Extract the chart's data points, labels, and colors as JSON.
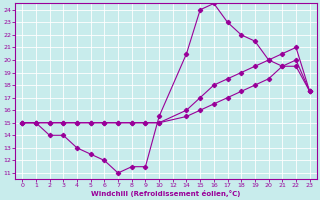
{
  "xlabel": "Windchill (Refroidissement éolien,°C)",
  "bg_color": "#c8ecec",
  "line_color": "#990099",
  "grid_color": "#ffffff",
  "xtick_labels": [
    "0",
    "1",
    "2",
    "3",
    "4",
    "5",
    "6",
    "7",
    "8",
    "9",
    "10",
    "12",
    "14",
    "15",
    "16",
    "17",
    "18",
    "19",
    "20",
    "21",
    "22",
    "23"
  ],
  "xtick_vals": [
    0,
    1,
    2,
    3,
    4,
    5,
    6,
    7,
    8,
    9,
    10,
    11,
    12,
    13,
    14,
    15,
    16,
    17,
    18,
    19,
    20,
    21
  ],
  "ylim": [
    10.5,
    24.5
  ],
  "yticks": [
    11,
    12,
    13,
    14,
    15,
    16,
    17,
    18,
    19,
    20,
    21,
    22,
    23,
    24
  ],
  "line1_x": [
    0,
    1,
    2,
    3,
    4,
    5,
    6,
    7,
    8,
    9,
    10,
    12,
    13,
    14,
    15,
    16,
    17,
    18,
    19,
    20,
    21
  ],
  "line1_y": [
    15,
    15,
    14,
    14,
    13,
    12.5,
    12,
    11,
    11.5,
    11.5,
    15.5,
    20.5,
    24,
    24.5,
    23,
    22,
    21.5,
    20,
    19.5,
    19.5,
    17.5
  ],
  "line2_x": [
    0,
    1,
    2,
    3,
    4,
    5,
    6,
    7,
    8,
    9,
    10,
    12,
    13,
    14,
    15,
    16,
    17,
    18,
    19,
    20,
    21
  ],
  "line2_y": [
    15,
    15,
    15,
    15,
    15,
    15,
    15,
    15,
    15,
    15,
    15,
    16,
    17,
    18,
    18.5,
    19,
    19.5,
    20,
    20.5,
    21,
    17.5
  ],
  "line3_x": [
    0,
    1,
    2,
    3,
    4,
    5,
    6,
    7,
    8,
    9,
    10,
    12,
    13,
    14,
    15,
    16,
    17,
    18,
    19,
    20,
    21
  ],
  "line3_y": [
    15,
    15,
    15,
    15,
    15,
    15,
    15,
    15,
    15,
    15,
    15,
    15.5,
    16,
    16.5,
    17,
    17.5,
    18,
    18.5,
    19.5,
    20,
    17.5
  ]
}
